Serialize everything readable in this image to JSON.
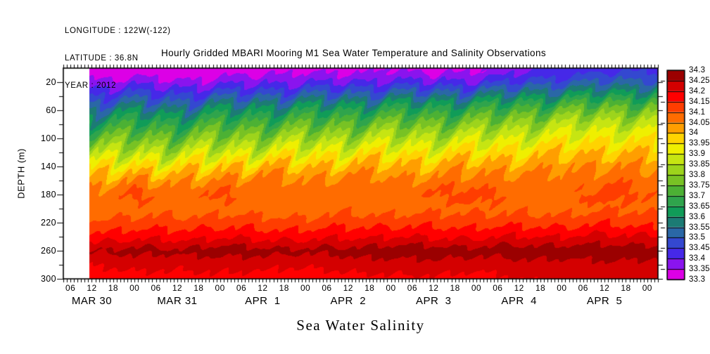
{
  "header": {
    "line1": "LONGITUDE : 122W(-122)",
    "line2": "LATITUDE : 36.8N",
    "line3": "YEAR : 2012"
  },
  "title": "Hourly Gridded MBARI Mooring M1 Sea Water Temperature and Salinity Observations",
  "footer_label": "Sea Water Salinity",
  "chart_data": {
    "type": "heatmap",
    "subtype": "filled_contour_time_depth_section",
    "title": "Hourly Gridded MBARI Mooring M1 Sea Water Temperature and Salinity Observations",
    "variable_label": "Sea Water Salinity",
    "ylabel": "DEPTH (m)",
    "data_start_hour": 11.3,
    "x_axis": {
      "start_label": "MAR 30",
      "end_label": "APR 5",
      "hours_domain": [
        4,
        171
      ],
      "hour_ticks": [
        6,
        12,
        18,
        24,
        30,
        36,
        42,
        48,
        54,
        60,
        66,
        72,
        78,
        84,
        90,
        96,
        102,
        108,
        114,
        120,
        126,
        132,
        138,
        144,
        150,
        156,
        162,
        168
      ],
      "hour_tick_labels": [
        "06",
        "12",
        "18",
        "00",
        "06",
        "12",
        "18",
        "00",
        "06",
        "12",
        "18",
        "00",
        "06",
        "12",
        "18",
        "00",
        "06",
        "12",
        "18",
        "00",
        "06",
        "12",
        "18",
        "00",
        "06",
        "12",
        "18",
        "00"
      ],
      "day_labels": [
        {
          "label": "MAR 30",
          "hour": 12
        },
        {
          "label": "MAR 31",
          "hour": 36
        },
        {
          "label": "APR  1",
          "hour": 60
        },
        {
          "label": "APR  2",
          "hour": 84
        },
        {
          "label": "APR  3",
          "hour": 108
        },
        {
          "label": "APR  4",
          "hour": 132
        },
        {
          "label": "APR  5",
          "hour": 156
        }
      ]
    },
    "y_axis": {
      "min": 0,
      "max": 300,
      "labeled_ticks": [
        20,
        60,
        100,
        140,
        180,
        220,
        260,
        300
      ],
      "minor_ticks": [
        40,
        80,
        120,
        160,
        200,
        240,
        280
      ]
    },
    "colorbar": {
      "min": 33.3,
      "max": 34.3,
      "step": 0.05,
      "labels_top_to_bottom": [
        "34.3",
        "34.25",
        "34.2",
        "34.15",
        "34.1",
        "34.05",
        "34",
        "33.95",
        "33.9",
        "33.85",
        "33.8",
        "33.75",
        "33.7",
        "33.65",
        "33.6",
        "33.55",
        "33.5",
        "33.45",
        "33.4",
        "33.35",
        "33.3"
      ],
      "colors_low_to_high": [
        "#DC00E6",
        "#8A14EE",
        "#4628E8",
        "#3448D0",
        "#2A67A6",
        "#1C7B74",
        "#109C58",
        "#2FA44C",
        "#4CB134",
        "#78C224",
        "#9DD41C",
        "#C6E512",
        "#EFEF00",
        "#FFD300",
        "#FF9E00",
        "#FF6C00",
        "#FF3D00",
        "#FF0000",
        "#D40000",
        "#9B0000"
      ]
    },
    "grid": {
      "t_hours": [
        4,
        12,
        24,
        36,
        48,
        60,
        72,
        84,
        96,
        108,
        120,
        132,
        144,
        156,
        168,
        170
      ],
      "depths": [
        0,
        10,
        20,
        30,
        40,
        50,
        60,
        80,
        100,
        120,
        140,
        160,
        180,
        200,
        220,
        240,
        260,
        280,
        300
      ],
      "values": [
        [
          33.34,
          33.31,
          33.32,
          33.3,
          33.32,
          33.33,
          33.34,
          33.33,
          33.35,
          33.33,
          33.34,
          33.38,
          33.41,
          33.43,
          33.44,
          33.44
        ],
        [
          33.36,
          33.33,
          33.34,
          33.32,
          33.34,
          33.35,
          33.36,
          33.35,
          33.37,
          33.35,
          33.37,
          33.41,
          33.44,
          33.46,
          33.47,
          33.47
        ],
        [
          33.39,
          33.36,
          33.38,
          33.36,
          33.38,
          33.39,
          33.4,
          33.4,
          33.42,
          33.41,
          33.42,
          33.46,
          33.49,
          33.51,
          33.52,
          33.52
        ],
        [
          33.43,
          33.41,
          33.43,
          33.41,
          33.43,
          33.44,
          33.46,
          33.46,
          33.48,
          33.47,
          33.49,
          33.52,
          33.55,
          33.57,
          33.58,
          33.58
        ],
        [
          33.47,
          33.45,
          33.48,
          33.46,
          33.49,
          33.5,
          33.52,
          33.52,
          33.54,
          33.54,
          33.56,
          33.59,
          33.62,
          33.64,
          33.65,
          33.65
        ],
        [
          33.52,
          33.5,
          33.53,
          33.51,
          33.55,
          33.56,
          33.58,
          33.59,
          33.61,
          33.61,
          33.63,
          33.66,
          33.69,
          33.71,
          33.72,
          33.72
        ],
        [
          33.57,
          33.55,
          33.59,
          33.57,
          33.61,
          33.62,
          33.64,
          33.65,
          33.67,
          33.67,
          33.69,
          33.72,
          33.75,
          33.77,
          33.78,
          33.78
        ],
        [
          33.67,
          33.65,
          33.69,
          33.67,
          33.71,
          33.72,
          33.74,
          33.75,
          33.77,
          33.77,
          33.79,
          33.82,
          33.85,
          33.87,
          33.87,
          33.87
        ],
        [
          33.76,
          33.74,
          33.78,
          33.76,
          33.8,
          33.81,
          33.83,
          33.84,
          33.86,
          33.86,
          33.88,
          33.9,
          33.92,
          33.94,
          33.93,
          33.93
        ],
        [
          33.85,
          33.83,
          33.87,
          33.85,
          33.89,
          33.9,
          33.92,
          33.93,
          33.94,
          33.94,
          33.96,
          33.97,
          33.99,
          34.0,
          33.99,
          33.99
        ],
        [
          33.95,
          33.93,
          33.97,
          33.95,
          33.99,
          34.0,
          34.0,
          34.01,
          34.02,
          34.01,
          34.03,
          34.03,
          34.04,
          34.05,
          34.04,
          34.04
        ],
        [
          34.03,
          34.01,
          34.06,
          34.03,
          34.06,
          34.07,
          34.05,
          34.07,
          34.06,
          34.06,
          34.08,
          34.07,
          34.06,
          34.09,
          34.08,
          34.08
        ],
        [
          34.07,
          34.06,
          34.12,
          34.07,
          34.12,
          34.08,
          34.07,
          34.09,
          34.08,
          34.11,
          34.12,
          34.09,
          34.08,
          34.13,
          34.1,
          34.1
        ],
        [
          34.07,
          34.06,
          34.08,
          34.07,
          34.08,
          34.07,
          34.07,
          34.08,
          34.08,
          34.08,
          34.09,
          34.08,
          34.08,
          34.09,
          34.09,
          34.09
        ],
        [
          34.12,
          34.11,
          34.12,
          34.12,
          34.13,
          34.12,
          34.12,
          34.13,
          34.13,
          34.13,
          34.13,
          34.13,
          34.13,
          34.14,
          34.13,
          34.13
        ],
        [
          34.18,
          34.17,
          34.18,
          34.18,
          34.19,
          34.18,
          34.18,
          34.19,
          34.2,
          34.19,
          34.19,
          34.2,
          34.2,
          34.21,
          34.21,
          34.21
        ],
        [
          34.26,
          34.25,
          34.27,
          34.26,
          34.28,
          34.27,
          34.26,
          34.27,
          34.28,
          34.28,
          34.27,
          34.28,
          34.28,
          34.28,
          34.28,
          34.28
        ],
        [
          34.21,
          34.2,
          34.22,
          34.21,
          34.22,
          34.21,
          34.21,
          34.22,
          34.23,
          34.23,
          34.22,
          34.23,
          34.23,
          34.24,
          34.23,
          34.23
        ],
        [
          34.18,
          34.17,
          34.18,
          34.18,
          34.19,
          34.18,
          34.17,
          34.18,
          34.19,
          34.19,
          34.18,
          34.2,
          34.21,
          34.22,
          34.21,
          34.21
        ]
      ]
    }
  }
}
